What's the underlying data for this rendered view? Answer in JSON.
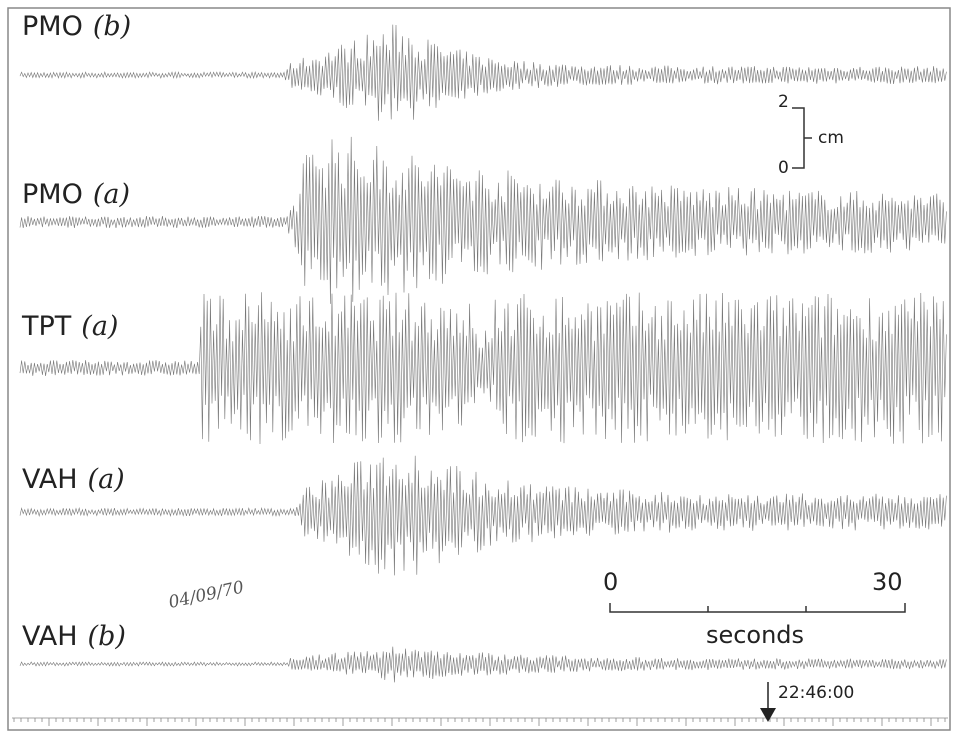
{
  "traces": [
    {
      "station": "PMO",
      "component": "(b)"
    },
    {
      "station": "PMO",
      "component": "(a)"
    },
    {
      "station": "TPT",
      "component": "(a)"
    },
    {
      "station": "VAH",
      "component": "(a)"
    },
    {
      "station": "VAH",
      "component": "(b)"
    }
  ],
  "amplitude_scale": {
    "top": "2",
    "bottom": "0",
    "unit": "cm"
  },
  "time_scale": {
    "start": "0",
    "end": "30",
    "unit": "seconds"
  },
  "time_mark": "22:46:00",
  "handwritten_date": "04/09/70"
}
